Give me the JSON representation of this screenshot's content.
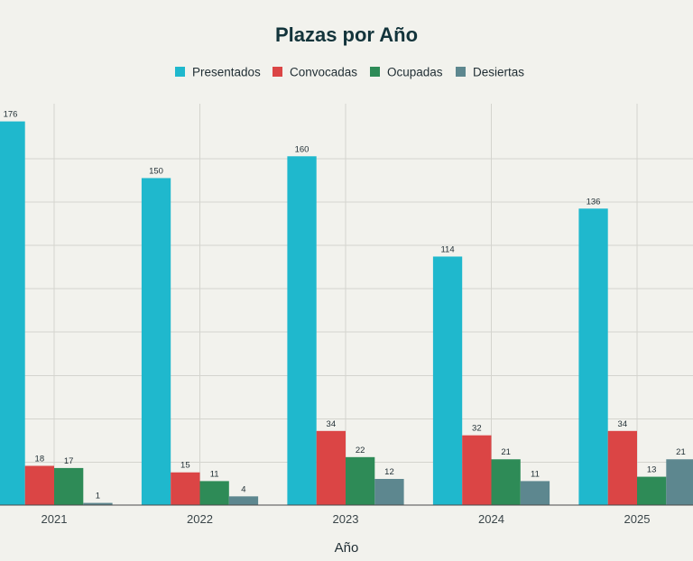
{
  "chart_data": {
    "type": "bar",
    "title": "Plazas por Año",
    "xlabel": "Año",
    "ylabel": "",
    "categories": [
      "2021",
      "2022",
      "2023",
      "2024",
      "2025"
    ],
    "series": [
      {
        "name": "Presentados",
        "color": "#1fb8cd",
        "values": [
          176,
          150,
          160,
          114,
          136
        ]
      },
      {
        "name": "Convocadas",
        "color": "#db4545",
        "values": [
          18,
          15,
          34,
          32,
          34
        ]
      },
      {
        "name": "Ocupadas",
        "color": "#2e8b57",
        "values": [
          17,
          11,
          22,
          21,
          13
        ]
      },
      {
        "name": "Desiertas",
        "color": "#5d878f",
        "values": [
          1,
          4,
          12,
          11,
          21
        ]
      }
    ],
    "ylim": [
      0,
      185
    ],
    "grid": true,
    "legend": "top-center"
  }
}
